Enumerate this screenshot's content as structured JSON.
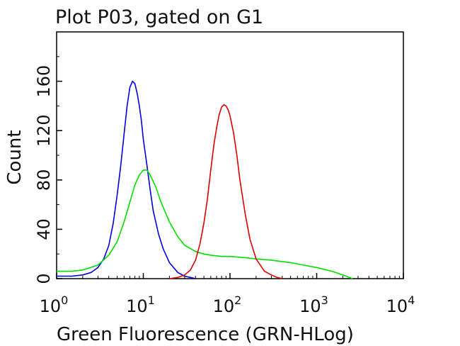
{
  "chart_data": {
    "type": "line",
    "title": "Plot P03, gated on G1",
    "xlabel": "Green Fluorescence (GRN-HLog)",
    "ylabel": "Count",
    "x_scale": "log",
    "xlim": [
      1,
      10000
    ],
    "ylim": [
      0,
      200
    ],
    "grid": false,
    "legend": "none",
    "x_ticks": [
      {
        "value": 1,
        "base": "10",
        "exp": "0"
      },
      {
        "value": 10,
        "base": "10",
        "exp": "1"
      },
      {
        "value": 100,
        "base": "10",
        "exp": "2"
      },
      {
        "value": 1000,
        "base": "10",
        "exp": "3"
      },
      {
        "value": 10000,
        "base": "10",
        "exp": "4"
      }
    ],
    "y_ticks": [
      "0",
      "40",
      "80",
      "120",
      "160"
    ],
    "series": [
      {
        "color": "#0000e0",
        "x": [
          1,
          1.5,
          2,
          2.5,
          3,
          3.5,
          4,
          4.5,
          5,
          5.5,
          6,
          6.5,
          7,
          7.5,
          8,
          8.5,
          9,
          9.5,
          10,
          11,
          12,
          13,
          15,
          17,
          20,
          25,
          30,
          35,
          40
        ],
        "y": [
          2,
          2,
          3,
          5,
          9,
          16,
          27,
          45,
          68,
          92,
          117,
          140,
          155,
          160,
          158,
          150,
          140,
          128,
          113,
          92,
          72,
          55,
          36,
          24,
          13,
          5,
          2,
          1,
          0
        ]
      },
      {
        "color": "#00e000",
        "x": [
          1,
          1.5,
          2,
          3,
          4,
          5,
          6,
          7,
          8,
          9,
          10,
          11,
          12,
          14,
          16,
          20,
          25,
          30,
          40,
          50,
          60,
          80,
          100,
          150,
          200,
          300,
          500,
          700,
          1000,
          1500,
          2000,
          2600
        ],
        "y": [
          6,
          6,
          7,
          11,
          19,
          30,
          46,
          62,
          76,
          84,
          88,
          88,
          84,
          74,
          62,
          46,
          34,
          27,
          22,
          20,
          19,
          18,
          18,
          17,
          16,
          15,
          13,
          11,
          9,
          6,
          3,
          0
        ]
      },
      {
        "color": "#e00000",
        "x": [
          20,
          25,
          30,
          35,
          40,
          45,
          50,
          55,
          60,
          65,
          70,
          75,
          80,
          85,
          90,
          95,
          100,
          110,
          120,
          130,
          150,
          170,
          200,
          250,
          300,
          350,
          400
        ],
        "y": [
          0,
          1,
          3,
          7,
          15,
          28,
          45,
          65,
          88,
          108,
          122,
          133,
          139,
          141,
          140,
          137,
          132,
          118,
          100,
          80,
          52,
          32,
          16,
          6,
          3,
          1,
          0
        ]
      }
    ]
  }
}
